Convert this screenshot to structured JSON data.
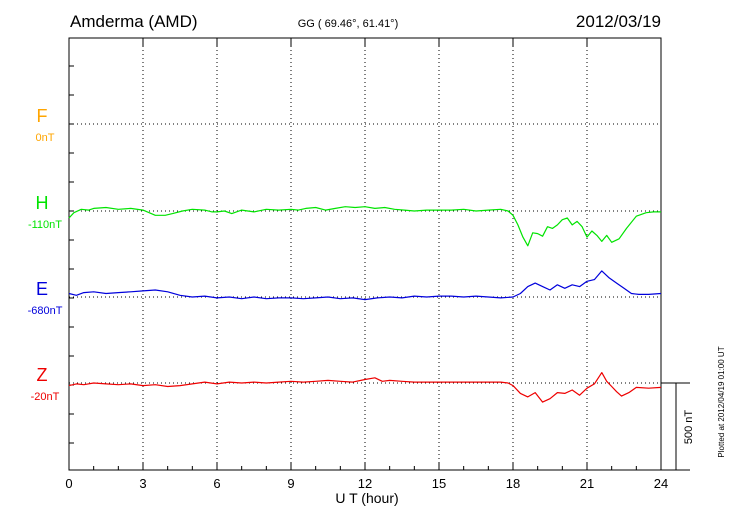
{
  "header": {
    "station": "Amderma (AMD)",
    "coords": "GG ( 69.46°,  61.41°)",
    "date": "2012/03/19"
  },
  "plotted_note": "Plotted at 2012/04/19 01:00 UT",
  "chart_data": {
    "type": "line",
    "title": "Amderma (AMD)",
    "xlabel": "U T (hour)",
    "ylabel": "",
    "xlim": [
      0,
      24
    ],
    "xticks": [
      "0",
      "3",
      "6",
      "9",
      "12",
      "15",
      "18",
      "21",
      "24"
    ],
    "scale_bar_label": "500 nT",
    "scale_bar_nT": 500,
    "grid": true,
    "units": "nT relative to baseline",
    "series": [
      {
        "name": "F",
        "baseline_label": "0nT",
        "color": "#ffa500",
        "x": [],
        "y": []
      },
      {
        "name": "H",
        "baseline_label": "-110nT",
        "color": "#00e400",
        "x": [
          0,
          0.2,
          0.5,
          0.8,
          1.0,
          1.5,
          2.0,
          2.5,
          3.0,
          3.5,
          3.9,
          4.2,
          4.6,
          5.0,
          5.5,
          5.8,
          6.0,
          6.3,
          6.6,
          7.0,
          7.5,
          8.0,
          8.5,
          9.0,
          9.3,
          9.6,
          10.0,
          10.4,
          10.8,
          11.2,
          11.6,
          12.0,
          12.4,
          12.8,
          13.2,
          13.6,
          14.0,
          14.5,
          15.0,
          15.5,
          16.0,
          16.5,
          17.0,
          17.5,
          17.8,
          18.0,
          18.2,
          18.4,
          18.6,
          18.8,
          19.0,
          19.2,
          19.4,
          19.6,
          19.8,
          20.0,
          20.2,
          20.4,
          20.6,
          20.8,
          21.0,
          21.2,
          21.4,
          21.6,
          21.8,
          22.0,
          22.3,
          22.6,
          23.0,
          23.4,
          23.7,
          24.0
        ],
        "y": [
          -40,
          -10,
          10,
          5,
          15,
          20,
          10,
          15,
          5,
          -25,
          -25,
          -15,
          0,
          10,
          5,
          -5,
          -5,
          0,
          -15,
          5,
          -5,
          10,
          5,
          10,
          5,
          15,
          20,
          5,
          15,
          25,
          20,
          25,
          15,
          20,
          10,
          5,
          0,
          5,
          5,
          5,
          10,
          0,
          5,
          10,
          0,
          -25,
          -80,
          -150,
          -200,
          -125,
          -130,
          -145,
          -90,
          -100,
          -80,
          -50,
          -40,
          -80,
          -60,
          -90,
          -150,
          -115,
          -140,
          -175,
          -140,
          -180,
          -160,
          -100,
          -30,
          -10,
          -5,
          -5
        ]
      },
      {
        "name": "E",
        "baseline_label": "-680nT",
        "color": "#0000dc",
        "x": [
          0,
          0.3,
          0.6,
          1.0,
          1.5,
          2.0,
          2.5,
          3.0,
          3.5,
          4.0,
          4.5,
          5.0,
          5.5,
          6.0,
          6.5,
          7.0,
          7.5,
          8.0,
          8.5,
          9.0,
          9.5,
          10.0,
          10.5,
          11.0,
          11.5,
          12.0,
          12.5,
          13.0,
          13.5,
          14.0,
          14.5,
          15.0,
          15.5,
          16.0,
          16.5,
          17.0,
          17.5,
          18.0,
          18.3,
          18.6,
          18.9,
          19.2,
          19.5,
          19.8,
          20.1,
          20.4,
          20.7,
          21.0,
          21.3,
          21.6,
          21.9,
          22.2,
          22.5,
          22.8,
          23.1,
          23.5,
          24.0
        ],
        "y": [
          20,
          10,
          25,
          30,
          20,
          25,
          30,
          35,
          40,
          30,
          10,
          0,
          5,
          -5,
          0,
          -10,
          0,
          -10,
          -5,
          -5,
          -10,
          -5,
          0,
          -10,
          -5,
          -15,
          -5,
          0,
          -5,
          5,
          0,
          5,
          5,
          0,
          5,
          0,
          -5,
          0,
          20,
          60,
          80,
          60,
          40,
          70,
          50,
          70,
          60,
          90,
          100,
          150,
          110,
          80,
          50,
          20,
          15,
          15,
          20
        ]
      },
      {
        "name": "Z",
        "baseline_label": "-20nT",
        "color": "#ee0000",
        "x": [
          0,
          0.3,
          0.6,
          1.0,
          1.5,
          2.0,
          2.5,
          3.0,
          3.5,
          4.0,
          4.5,
          5.0,
          5.5,
          6.0,
          6.5,
          7.0,
          7.5,
          8.0,
          8.5,
          9.0,
          9.5,
          10.0,
          10.5,
          11.0,
          11.5,
          12.0,
          12.4,
          12.7,
          13.0,
          13.5,
          14.0,
          14.5,
          15.0,
          15.5,
          16.0,
          16.5,
          17.0,
          17.5,
          17.8,
          18.0,
          18.3,
          18.6,
          18.9,
          19.2,
          19.5,
          19.8,
          20.1,
          20.4,
          20.7,
          21.0,
          21.3,
          21.6,
          21.8,
          22.0,
          22.2,
          22.4,
          22.7,
          23.0,
          23.5,
          24.0
        ],
        "y": [
          -15,
          -5,
          -10,
          0,
          -5,
          -10,
          -5,
          -15,
          -10,
          -20,
          -15,
          -5,
          5,
          -5,
          5,
          0,
          5,
          0,
          5,
          10,
          5,
          10,
          15,
          10,
          5,
          20,
          30,
          10,
          15,
          10,
          5,
          5,
          5,
          5,
          5,
          5,
          5,
          5,
          0,
          -15,
          -60,
          -80,
          -55,
          -110,
          -90,
          -55,
          -60,
          -40,
          -70,
          -30,
          -5,
          60,
          10,
          -20,
          -50,
          -75,
          -55,
          -25,
          -30,
          -25
        ]
      }
    ]
  }
}
